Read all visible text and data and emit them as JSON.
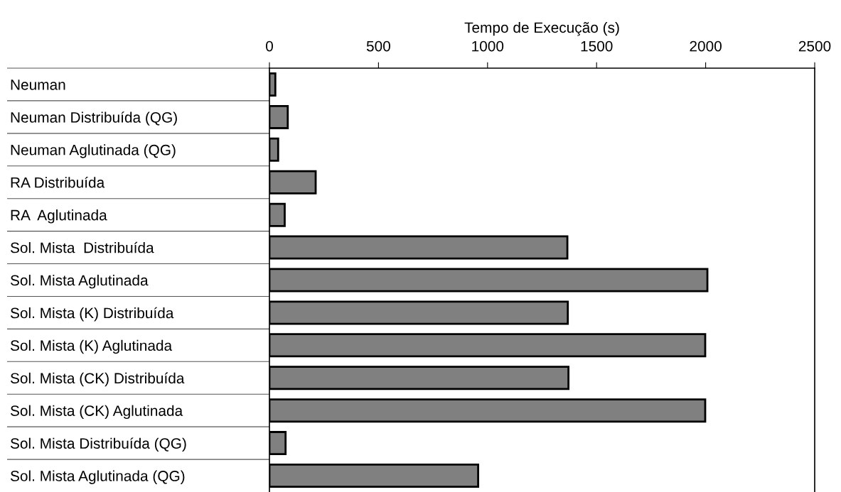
{
  "chart_data": {
    "type": "bar",
    "orientation": "horizontal",
    "xlabel": "Tempo de Execução (s)",
    "categories": [
      "Neuman",
      "Neuman Distribuída (QG)",
      "Neuman Aglutinada (QG)",
      "RA Distribuída",
      "RA  Aglutinada",
      "Sol. Mista  Distribuída",
      "Sol. Mista Aglutinada",
      "Sol. Mista (K) Distribuída",
      "Sol. Mista (K) Aglutinada",
      "Sol. Mista (CK) Distribuída",
      "Sol. Mista (CK) Aglutinada",
      "Sol. Mista Distribuída (QG)",
      "Sol. Mista Aglutinada (QG)"
    ],
    "values": [
      27,
      84,
      40,
      212,
      70,
      1366,
      2008,
      1368,
      1998,
      1371,
      1998,
      74,
      957
    ],
    "color": "#808080",
    "xlim": [
      0,
      2500
    ],
    "xticks": [
      0,
      500,
      1000,
      1500,
      2000,
      2500
    ],
    "grid": false,
    "legend": false
  }
}
